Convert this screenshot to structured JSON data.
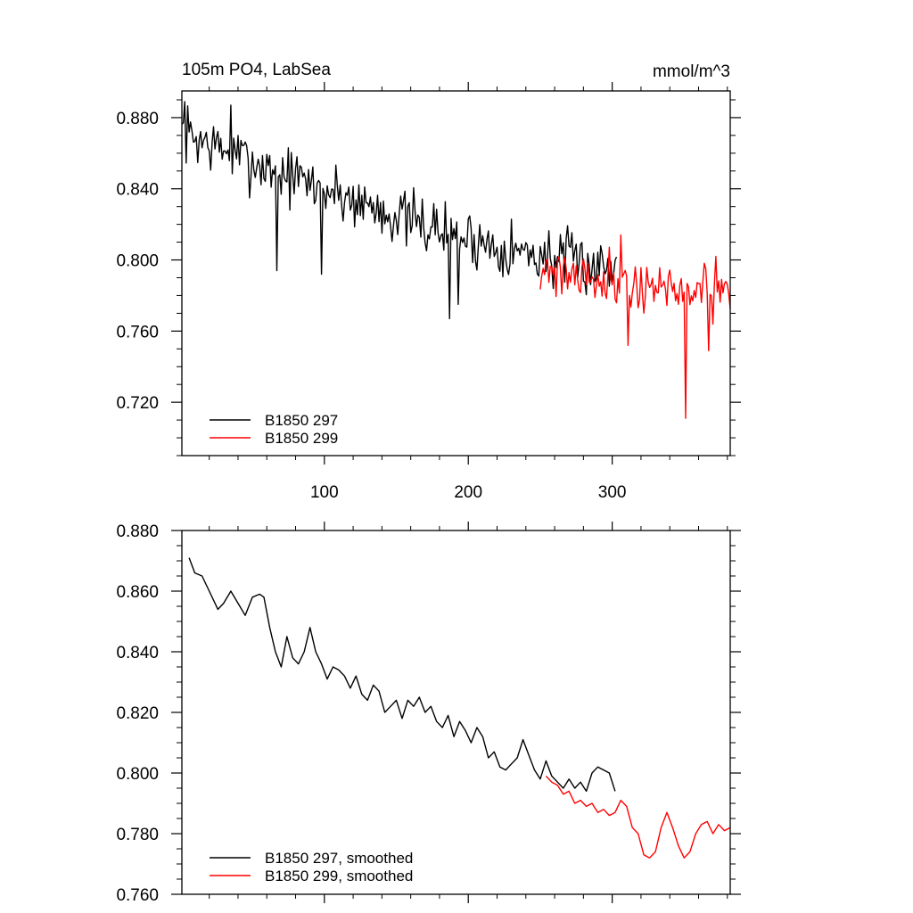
{
  "colors": {
    "series_a": "#000000",
    "series_b": "#ff0000",
    "frame": "#000000",
    "background": "#ffffff"
  },
  "chart_data": [
    {
      "type": "line",
      "title": "105m PO4, LabSea",
      "units": "mmol/m^3",
      "xlim": [
        1,
        382
      ],
      "ylim": [
        0.69,
        0.895
      ],
      "xticks": [
        100,
        200,
        300
      ],
      "xtick_labels": [
        "100",
        "200",
        "300"
      ],
      "yticks": [
        0.72,
        0.76,
        0.8,
        0.84,
        0.88
      ],
      "ytick_labels": [
        "0.720",
        "0.760",
        "0.800",
        "0.840",
        "0.880"
      ],
      "legend": "bottom-left",
      "series": [
        {
          "name": "B1850 297",
          "color": "#000000",
          "x_start": 1,
          "x_step": 1,
          "noise": 0.018,
          "seed": 7,
          "trend": [
            [
              1,
              0.872
            ],
            [
              40,
              0.858
            ],
            [
              80,
              0.846
            ],
            [
              120,
              0.834
            ],
            [
              160,
              0.822
            ],
            [
              200,
              0.812
            ],
            [
              240,
              0.804
            ],
            [
              280,
              0.798
            ],
            [
              303,
              0.796
            ]
          ],
          "spikes": [
            [
              3,
              0.889
            ],
            [
              35,
              0.887
            ],
            [
              67,
              0.794
            ],
            [
              98,
              0.792
            ],
            [
              187,
              0.767
            ],
            [
              193,
              0.775
            ]
          ]
        },
        {
          "name": "B1850 299",
          "color": "#ff0000",
          "x_start": 250,
          "x_step": 1,
          "noise": 0.016,
          "seed": 21,
          "trend": [
            [
              250,
              0.796
            ],
            [
              280,
              0.792
            ],
            [
              310,
              0.787
            ],
            [
              340,
              0.783
            ],
            [
              382,
              0.781
            ]
          ],
          "spikes": [
            [
              306,
              0.814
            ],
            [
              311,
              0.752
            ],
            [
              351,
              0.711
            ],
            [
              367,
              0.749
            ]
          ]
        }
      ]
    },
    {
      "type": "line",
      "title": "",
      "xlim": [
        1,
        382
      ],
      "ylim": [
        0.76,
        0.88
      ],
      "xticks": [
        100,
        200,
        300
      ],
      "yticks": [
        0.76,
        0.78,
        0.8,
        0.82,
        0.84,
        0.86,
        0.88
      ],
      "ytick_labels": [
        "0.760",
        "0.780",
        "0.800",
        "0.820",
        "0.840",
        "0.860",
        "0.880"
      ],
      "legend": "bottom-left",
      "series": [
        {
          "name": "B1850 297, smoothed",
          "color": "#000000",
          "x": [
            6,
            10,
            15,
            20,
            26,
            30,
            35,
            40,
            45,
            50,
            55,
            58,
            62,
            66,
            70,
            74,
            78,
            82,
            86,
            90,
            94,
            98,
            102,
            106,
            110,
            114,
            118,
            122,
            126,
            130,
            134,
            138,
            142,
            146,
            150,
            154,
            158,
            162,
            166,
            170,
            174,
            178,
            182,
            186,
            190,
            194,
            198,
            202,
            206,
            210,
            214,
            218,
            222,
            226,
            230,
            234,
            238,
            242,
            246,
            250,
            254,
            258,
            262,
            266,
            270,
            274,
            278,
            282,
            286,
            290,
            294,
            298,
            302
          ],
          "y": [
            0.871,
            0.866,
            0.865,
            0.86,
            0.854,
            0.856,
            0.86,
            0.856,
            0.852,
            0.858,
            0.859,
            0.858,
            0.848,
            0.84,
            0.835,
            0.845,
            0.838,
            0.836,
            0.84,
            0.848,
            0.84,
            0.836,
            0.831,
            0.835,
            0.834,
            0.832,
            0.828,
            0.832,
            0.826,
            0.824,
            0.829,
            0.827,
            0.82,
            0.822,
            0.824,
            0.818,
            0.824,
            0.822,
            0.825,
            0.82,
            0.822,
            0.817,
            0.815,
            0.819,
            0.812,
            0.817,
            0.814,
            0.81,
            0.815,
            0.812,
            0.805,
            0.807,
            0.802,
            0.801,
            0.803,
            0.805,
            0.811,
            0.806,
            0.801,
            0.798,
            0.804,
            0.799,
            0.797,
            0.795,
            0.798,
            0.795,
            0.797,
            0.794,
            0.8,
            0.802,
            0.801,
            0.8,
            0.794
          ]
        },
        {
          "name": "B1850 299, smoothed",
          "color": "#ff0000",
          "x": [
            254,
            258,
            262,
            266,
            270,
            274,
            278,
            282,
            286,
            290,
            294,
            298,
            302,
            306,
            310,
            314,
            318,
            322,
            326,
            330,
            334,
            338,
            342,
            346,
            350,
            354,
            358,
            362,
            366,
            370,
            374,
            378,
            382
          ],
          "y": [
            0.799,
            0.797,
            0.796,
            0.793,
            0.794,
            0.79,
            0.791,
            0.789,
            0.79,
            0.787,
            0.788,
            0.786,
            0.787,
            0.791,
            0.789,
            0.782,
            0.78,
            0.773,
            0.772,
            0.774,
            0.782,
            0.787,
            0.782,
            0.776,
            0.772,
            0.774,
            0.78,
            0.783,
            0.784,
            0.78,
            0.783,
            0.781,
            0.782
          ]
        }
      ]
    }
  ]
}
